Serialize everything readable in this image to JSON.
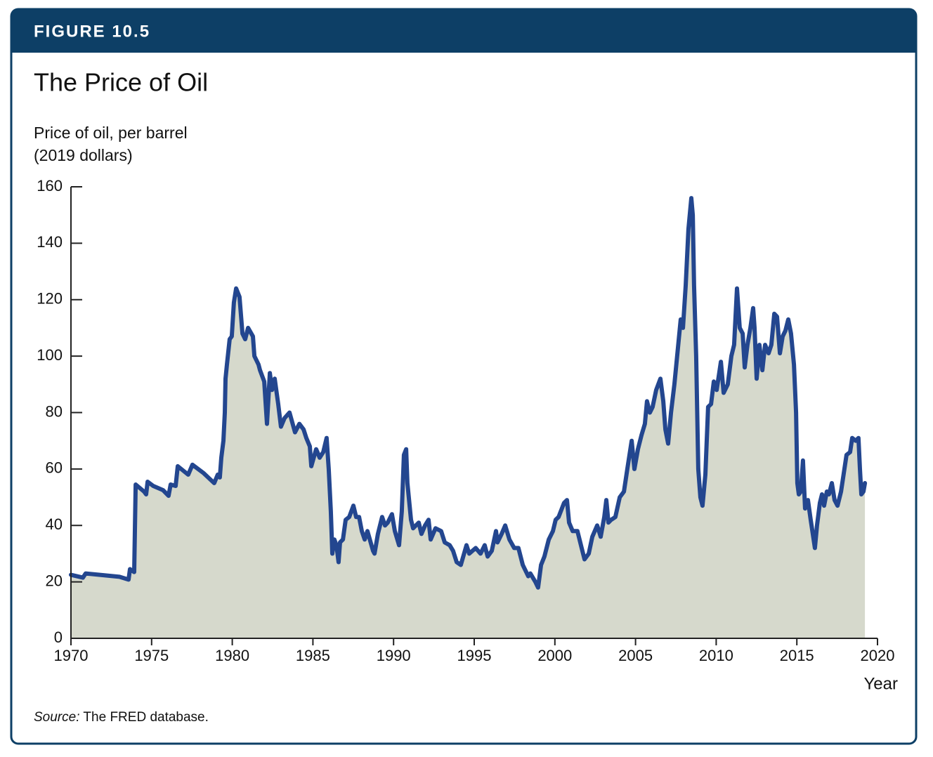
{
  "chart_data": {
    "type": "area",
    "figure_label": "FIGURE 10.5",
    "title": "The Price of Oil",
    "ylabel": [
      "Price of oil, per barrel",
      "(2019 dollars)"
    ],
    "xlabel": "Year",
    "source_label": "Source:",
    "source": "The FRED database.",
    "line_color": "#23468f",
    "fill_color": "#d6d9cc",
    "xlim": [
      1970,
      2020
    ],
    "ylim": [
      0,
      160
    ],
    "xticks": [
      1970,
      1975,
      1980,
      1985,
      1990,
      1995,
      2000,
      2005,
      2010,
      2015,
      2020
    ],
    "yticks": [
      0,
      20,
      40,
      60,
      80,
      100,
      120,
      140,
      160
    ],
    "x": [
      1970.0,
      1970.74,
      1970.91,
      1972.13,
      1973.01,
      1973.57,
      1973.66,
      1973.92,
      1974.01,
      1974.53,
      1974.66,
      1974.75,
      1975.1,
      1975.71,
      1976.05,
      1976.18,
      1976.49,
      1976.62,
      1977.27,
      1977.53,
      1978.23,
      1978.88,
      1979.1,
      1979.23,
      1979.32,
      1979.45,
      1979.54,
      1979.58,
      1979.67,
      1979.84,
      1979.97,
      1980.1,
      1980.24,
      1980.45,
      1980.63,
      1980.8,
      1980.98,
      1981.28,
      1981.37,
      1981.63,
      1981.72,
      1981.98,
      1982.15,
      1982.33,
      1982.46,
      1982.63,
      1982.85,
      1983.02,
      1983.24,
      1983.55,
      1983.89,
      1984.16,
      1984.42,
      1984.59,
      1984.81,
      1984.9,
      1985.2,
      1985.42,
      1985.64,
      1985.85,
      1985.98,
      1986.11,
      1986.2,
      1986.33,
      1986.46,
      1986.59,
      1986.68,
      1986.86,
      1987.03,
      1987.25,
      1987.51,
      1987.68,
      1987.86,
      1988.03,
      1988.21,
      1988.38,
      1988.73,
      1988.82,
      1989.03,
      1989.29,
      1989.47,
      1989.64,
      1989.9,
      1990.08,
      1990.34,
      1990.51,
      1990.64,
      1990.78,
      1990.86,
      1991.08,
      1991.21,
      1991.56,
      1991.73,
      1991.95,
      1992.17,
      1992.3,
      1992.6,
      1992.95,
      1993.17,
      1993.48,
      1993.69,
      1993.91,
      1994.17,
      1994.52,
      1994.69,
      1995.09,
      1995.39,
      1995.65,
      1995.83,
      1996.09,
      1996.35,
      1996.44,
      1996.7,
      1996.92,
      1997.18,
      1997.48,
      1997.74,
      1998.01,
      1998.35,
      1998.48,
      1998.79,
      1998.96,
      1999.14,
      1999.35,
      1999.62,
      1999.88,
      2000.05,
      2000.23,
      2000.57,
      2000.75,
      2000.88,
      2001.1,
      2001.4,
      2001.66,
      2001.84,
      2002.1,
      2002.32,
      2002.62,
      2002.84,
      2003.06,
      2003.19,
      2003.32,
      2003.49,
      2003.75,
      2004.02,
      2004.28,
      2004.49,
      2004.76,
      2004.93,
      2005.15,
      2005.37,
      2005.58,
      2005.71,
      2005.89,
      2006.06,
      2006.28,
      2006.54,
      2006.72,
      2006.85,
      2007.02,
      2007.2,
      2007.41,
      2007.63,
      2007.8,
      2007.94,
      2008.11,
      2008.28,
      2008.46,
      2008.55,
      2008.63,
      2008.76,
      2008.89,
      2009.02,
      2009.15,
      2009.33,
      2009.5,
      2009.68,
      2009.85,
      2010.03,
      2010.29,
      2010.46,
      2010.72,
      2010.94,
      2011.11,
      2011.29,
      2011.46,
      2011.64,
      2011.77,
      2011.94,
      2012.12,
      2012.29,
      2012.38,
      2012.51,
      2012.68,
      2012.86,
      2013.03,
      2013.25,
      2013.42,
      2013.6,
      2013.77,
      2013.95,
      2014.12,
      2014.29,
      2014.47,
      2014.64,
      2014.82,
      2014.95,
      2015.03,
      2015.12,
      2015.25,
      2015.38,
      2015.51,
      2015.69,
      2015.86,
      2016.04,
      2016.12,
      2016.25,
      2016.43,
      2016.56,
      2016.69,
      2016.86,
      2016.99,
      2017.17,
      2017.34,
      2017.52,
      2017.74,
      2017.95,
      2018.08,
      2018.3,
      2018.43,
      2018.65,
      2018.82,
      2018.91,
      2019.0,
      2019.13,
      2019.22
    ],
    "values": [
      22.5,
      21.5,
      23,
      22.3,
      21.8,
      20.8,
      24.5,
      23.5,
      54.5,
      52,
      51,
      55.5,
      54,
      52.5,
      50.5,
      54.5,
      54,
      61,
      58,
      61.5,
      58.5,
      55,
      58,
      57,
      64,
      70,
      80,
      92,
      97,
      106,
      107,
      119,
      124,
      121,
      108,
      106,
      110,
      107,
      100,
      97,
      95,
      91,
      76,
      94,
      88,
      92,
      83,
      75,
      78,
      80,
      73,
      76,
      74,
      71,
      68,
      61,
      67,
      64,
      66,
      71,
      60,
      45,
      30,
      35,
      33,
      27,
      34,
      35,
      42,
      43,
      47,
      43,
      43,
      38,
      35,
      38,
      31,
      30,
      37,
      43,
      40,
      41,
      44,
      38,
      33,
      45,
      65,
      67,
      55,
      42,
      39,
      41,
      37,
      40,
      42,
      35,
      39,
      38,
      34,
      33,
      31,
      27,
      26,
      33,
      30,
      32,
      30,
      33,
      29,
      31,
      38,
      34,
      37,
      40,
      35,
      32,
      32,
      26,
      22,
      23,
      20,
      18,
      26,
      29,
      35,
      38,
      42,
      43,
      48,
      49,
      41,
      38,
      38,
      32,
      28,
      30,
      36,
      40,
      36,
      43,
      49,
      41,
      42,
      43,
      50,
      52,
      60,
      70,
      60,
      67,
      72,
      76,
      84,
      80,
      82,
      88,
      92,
      84,
      74,
      69,
      80,
      90,
      103,
      113,
      110,
      125,
      145,
      156,
      150,
      125,
      100,
      60,
      50,
      47,
      58,
      82,
      83,
      91,
      88,
      98,
      87,
      90,
      100,
      104,
      124,
      110,
      108,
      96,
      104,
      110,
      117,
      110,
      92,
      104,
      95,
      104,
      101,
      104,
      115,
      114,
      101,
      107,
      109,
      113,
      108,
      97,
      80,
      55,
      51,
      52,
      63,
      46,
      49,
      42,
      35,
      32,
      40,
      48,
      51,
      47,
      52,
      51,
      55,
      49,
      47,
      52,
      60,
      65,
      66,
      71,
      70,
      71,
      60,
      51,
      52,
      55
    ]
  }
}
